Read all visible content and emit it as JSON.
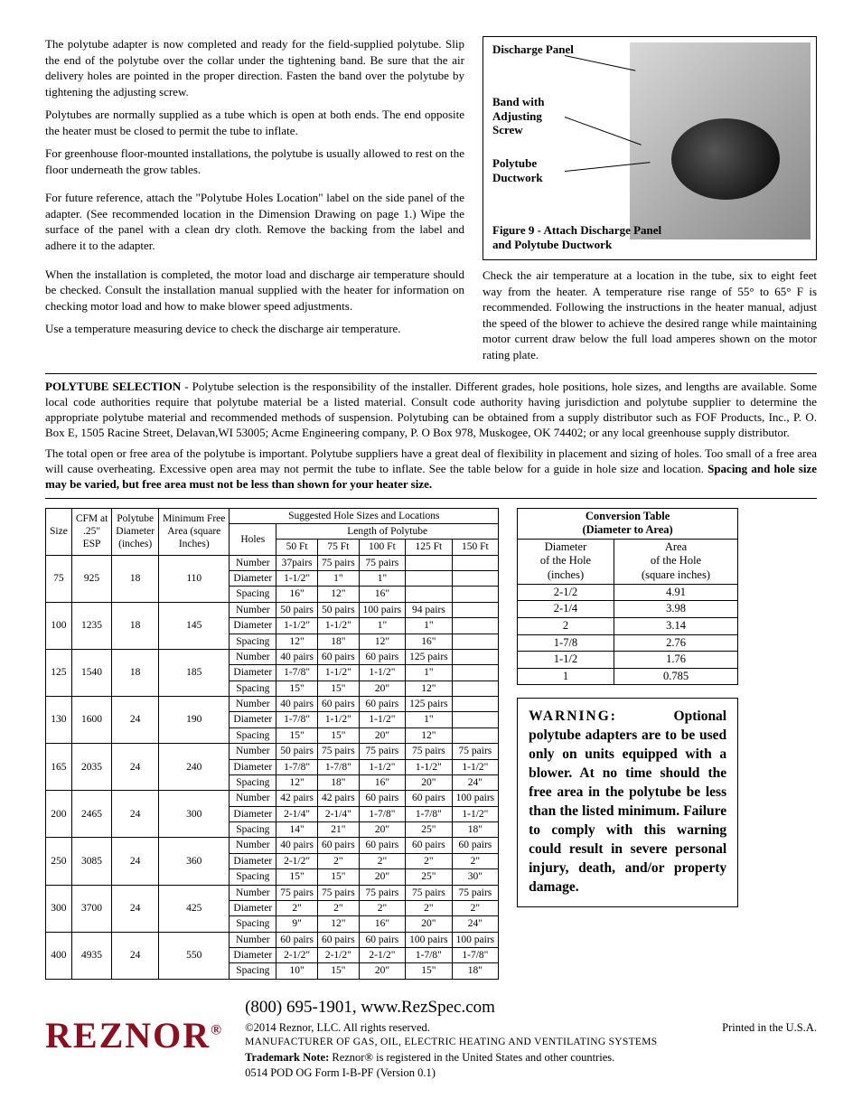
{
  "paragraphs": {
    "p1": "The polytube adapter is now completed and ready for the field-supplied polytube. Slip the end of the polytube over the collar under the tightening band.   Be sure that the air delivery holes are pointed in the proper direction. Fasten the band over the polytube by tightening the adjusting screw.",
    "p2": "Polytubes are normally supplied as a tube which is open at both ends. The end opposite the heater must be closed to permit the tube to inflate.",
    "p3": "For greenhouse floor-mounted installations, the polytube is usually allowed to rest on the floor underneath the grow tables.",
    "p4": "For future reference, attach the \"Polytube Holes Location\" label on the side panel of the adapter. (See recommended location in the Dimension Drawing on page 1.) Wipe the surface of the panel with a clean dry cloth. Remove the backing from the label and adhere it to the adapter.",
    "p5": "When the installation is completed, the motor load and discharge air temperature should be checked. Consult the installation manual supplied with the heater for information on checking motor load and how to make blower speed adjustments.",
    "p6": "Use a temperature measuring device to check the discharge air temperature.",
    "right": "Check the air temperature at a location in the tube, six to eight feet way from the heater. A temperature rise range of 55° to 65° F is recommended. Following the instructions in the heater manual, adjust the speed of the blower to achieve the desired range while maintaining motor current draw below the full load amperes shown on the motor rating plate."
  },
  "figure": {
    "label1": "Discharge Panel",
    "label2": "Band with Adjusting Screw",
    "label3": "Polytube Ductwork",
    "caption": "Figure 9 - Attach Discharge Panel and Polytube Ductwork"
  },
  "selection": {
    "lead": "POLYTUBE SELECTION",
    "p1": " - Polytube selection is the responsibility of the installer. Different grades, hole positions, hole sizes, and lengths are available. Some local code authorities require that polytube material be a listed material. Consult code authority having jurisdiction and polytube supplier to determine the appropriate polytube material and recommended methods of suspension. Polytubing can be obtained from a supply distributor such as FOF Products, Inc., P. O. Box E, 1505 Racine Street, Delavan,WI 53005; Acme Engineering company, P. O Box 978, Muskogee, OK 74402; or any local greenhouse supply distributor.",
    "p2": "The total open or free area of the polytube is important. Polytube suppliers have a great deal of flexibility in placement and sizing of holes. Too small of a free area will cause overheating. Excessive open area may not permit the tube to inflate. See the table below for a guide in hole size and location. ",
    "p2bold": "Spacing and hole size may be varied, but free area must not be less than shown for your heater size."
  },
  "mainTable": {
    "h_size": "Size",
    "h_cfm1": "CFM at",
    "h_cfm2": ".25\"",
    "h_cfm3": "ESP",
    "h_poly1": "Polytube",
    "h_poly2": "Diameter",
    "h_poly3": "(inches)",
    "h_min1": "Minimum Free",
    "h_min2": "Area (square",
    "h_min3": "Inches)",
    "h_sugg": "Suggested Hole Sizes and Locations",
    "h_holes": "Holes",
    "h_len": "Length of Polytube",
    "len_cols": [
      "50 Ft",
      "75 Ft",
      "100 Ft",
      "125 Ft",
      "150 Ft"
    ],
    "row_labels": [
      "Number",
      "Diameter",
      "Spacing"
    ],
    "rows": [
      {
        "size": "75",
        "cfm": "925",
        "dia": "18",
        "min": "110",
        "n": [
          "37pairs",
          "75 pairs",
          "75 pairs",
          "",
          ""
        ],
        "d": [
          "1-1/2\"",
          "1\"",
          "1\"",
          "",
          ""
        ],
        "s": [
          "16\"",
          "12\"",
          "16\"",
          "",
          ""
        ]
      },
      {
        "size": "100",
        "cfm": "1235",
        "dia": "18",
        "min": "145",
        "n": [
          "50 pairs",
          "50 pairs",
          "100 pairs",
          "94 pairs",
          ""
        ],
        "d": [
          "1-1/2\"",
          "1-1/2\"",
          "1\"",
          "1\"",
          ""
        ],
        "s": [
          "12\"",
          "18\"",
          "12\"",
          "16\"",
          ""
        ]
      },
      {
        "size": "125",
        "cfm": "1540",
        "dia": "18",
        "min": "185",
        "n": [
          "40 pairs",
          "60 pairs",
          "60 pairs",
          "125 pairs",
          ""
        ],
        "d": [
          "1-7/8\"",
          "1-1/2\"",
          "1-1/2\"",
          "1\"",
          ""
        ],
        "s": [
          "15\"",
          "15\"",
          "20\"",
          "12\"",
          ""
        ]
      },
      {
        "size": "130",
        "cfm": "1600",
        "dia": "24",
        "min": "190",
        "n": [
          "40 pairs",
          "60 pairs",
          "60 pairs",
          "125 pairs",
          ""
        ],
        "d": [
          "1-7/8\"",
          "1-1/2\"",
          "1-1/2\"",
          "1\"",
          ""
        ],
        "s": [
          "15\"",
          "15\"",
          "20\"",
          "12\"",
          ""
        ]
      },
      {
        "size": "165",
        "cfm": "2035",
        "dia": "24",
        "min": "240",
        "n": [
          "50 pairs",
          "75 pairs",
          "75 pairs",
          "75 pairs",
          "75 pairs"
        ],
        "d": [
          "1-7/8\"",
          "1-7/8\"",
          "1-1/2\"",
          "1-1/2\"",
          "1-1/2\""
        ],
        "s": [
          "12\"",
          "18\"",
          "16\"",
          "20\"",
          "24\""
        ]
      },
      {
        "size": "200",
        "cfm": "2465",
        "dia": "24",
        "min": "300",
        "n": [
          "42 pairs",
          "42 pairs",
          "60 pairs",
          "60 pairs",
          "100 pairs"
        ],
        "d": [
          "2-1/4\"",
          "2-1/4\"",
          "1-7/8\"",
          "1-7/8\"",
          "1-1/2\""
        ],
        "s": [
          "14\"",
          "21\"",
          "20\"",
          "25\"",
          "18\""
        ]
      },
      {
        "size": "250",
        "cfm": "3085",
        "dia": "24",
        "min": "360",
        "n": [
          "40 pairs",
          "60 pairs",
          "60 pairs",
          "60 pairs",
          "60 pairs"
        ],
        "d": [
          "2-1/2\"",
          "2\"",
          "2\"",
          "2\"",
          "2\""
        ],
        "s": [
          "15\"",
          "15\"",
          "20\"",
          "25\"",
          "30\""
        ]
      },
      {
        "size": "300",
        "cfm": "3700",
        "dia": "24",
        "min": "425",
        "n": [
          "75 pairs",
          "75 pairs",
          "75 pairs",
          "75 pairs",
          "75 pairs"
        ],
        "d": [
          "2\"",
          "2\"",
          "2\"",
          "2\"",
          "2\""
        ],
        "s": [
          "9\"",
          "12\"",
          "16\"",
          "20\"",
          "24\""
        ]
      },
      {
        "size": "400",
        "cfm": "4935",
        "dia": "24",
        "min": "550",
        "n": [
          "60 pairs",
          "60 pairs",
          "60 pairs",
          "100 pairs",
          "100 pairs"
        ],
        "d": [
          "2-1/2\"",
          "2-1/2\"",
          "2-1/2\"",
          "1-7/8\"",
          "1-7/8\""
        ],
        "s": [
          "10\"",
          "15\"",
          "20\"",
          "15\"",
          "18\""
        ]
      }
    ]
  },
  "convTable": {
    "title1": "Conversion Table",
    "title2": "(Diameter to Area)",
    "h_dia1": "Diameter",
    "h_dia2": "of the Hole",
    "h_dia3": "(inches)",
    "h_area1": "Area",
    "h_area2": "of the Hole",
    "h_area3": "(square inches)",
    "rows": [
      [
        "2-1/2",
        "4.91"
      ],
      [
        "2-1/4",
        "3.98"
      ],
      [
        "2",
        "3.14"
      ],
      [
        "1-7/8",
        "2.76"
      ],
      [
        "1-1/2",
        "1.76"
      ],
      [
        "1",
        "0.785"
      ]
    ]
  },
  "warning": {
    "lead": "WARNING:",
    "body": " Optional polytube adapters are to be used only on units equipped with a blower. At no time should the free area in the polytube be less than the listed minimum. Failure to comply with this warning could result in severe personal injury, death, and/or property damage."
  },
  "footer": {
    "logo": "REZNOR",
    "contact": "(800) 695-1901, www.RezSpec.com",
    "copy": "©2014 Reznor, LLC. All rights reserved.",
    "printed": "Printed in the U.S.A.",
    "mfr": "MANUFACTURER OF GAS, OIL, ELECTRIC HEATING AND VENTILATING SYSTEMS",
    "tm_lead": "Trademark Note:",
    "tm": " Reznor® is registered in the United States and other countries.",
    "ver": "0514 POD OG Form I-B-PF  (Version 0.1)"
  }
}
